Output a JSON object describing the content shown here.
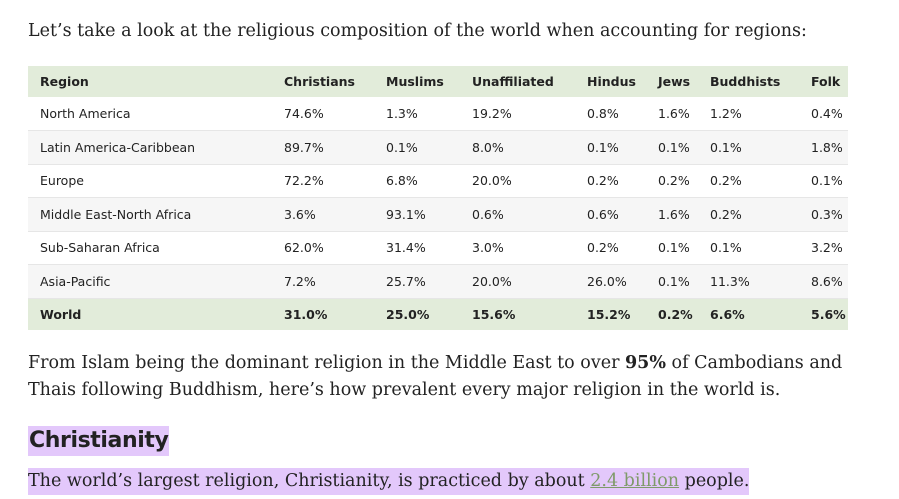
{
  "intro": "Let’s take a look at the religious composition of the world when accounting for regions:",
  "table": {
    "headers": [
      "Region",
      "Christians",
      "Muslims",
      "Unaffiliated",
      "Hindus",
      "Jews",
      "Buddhists",
      "Folk"
    ],
    "rows": [
      [
        "North America",
        "74.6%",
        "1.3%",
        "19.2%",
        "0.8%",
        "1.6%",
        "1.2%",
        "0.4%"
      ],
      [
        "Latin America-Caribbean",
        "89.7%",
        "0.1%",
        "8.0%",
        "0.1%",
        "0.1%",
        "0.1%",
        "1.8%"
      ],
      [
        "Europe",
        "72.2%",
        "6.8%",
        "20.0%",
        "0.2%",
        "0.2%",
        "0.2%",
        "0.1%"
      ],
      [
        "Middle East-North Africa",
        "3.6%",
        "93.1%",
        "0.6%",
        "0.6%",
        "1.6%",
        "0.2%",
        "0.3%"
      ],
      [
        "Sub-Saharan Africa",
        "62.0%",
        "31.4%",
        "3.0%",
        "0.2%",
        "0.1%",
        "0.1%",
        "3.2%"
      ],
      [
        "Asia-Pacific",
        "7.2%",
        "25.7%",
        "20.0%",
        "26.0%",
        "0.1%",
        "11.3%",
        "8.6%"
      ]
    ],
    "footer": [
      "World",
      "31.0%",
      "25.0%",
      "15.6%",
      "15.2%",
      "0.2%",
      "6.6%",
      "5.6%"
    ]
  },
  "paragraph": {
    "before": "From Islam being the dominant religion in the Middle East to over ",
    "bold": "95%",
    "after": " of Cambodians and Thais following Buddhism, here’s how prevalent every major religion in the world is."
  },
  "section_heading": "Christianity",
  "last_line": {
    "before": "The world’s largest religion, Christianity, is practiced by about ",
    "link": "2.4 billion",
    "after": " people."
  },
  "colors": {
    "table_header_bg": "#e2ecda",
    "highlight": "#e3c8fb",
    "link": "#7f9a6a"
  }
}
